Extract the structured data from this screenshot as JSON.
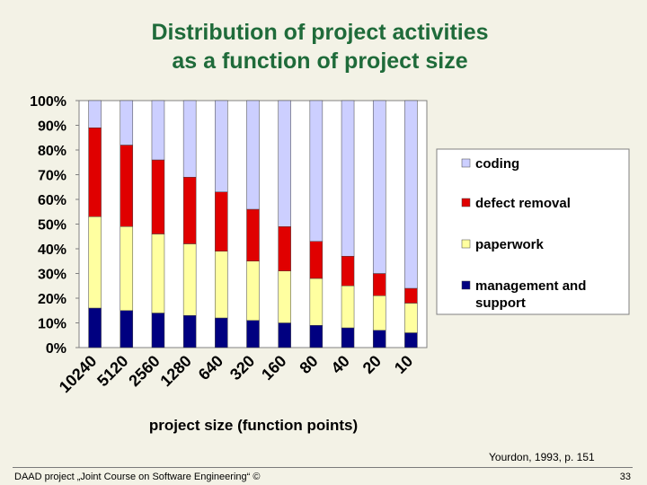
{
  "slide": {
    "title_line1": "Distribution of project activities",
    "title_line2": "as a function of project size",
    "citation": "Yourdon, 1993, p. 151",
    "footer": "DAAD project „Joint Course on Software Engineering“ ©",
    "page_number": "33"
  },
  "chart_data": {
    "type": "bar",
    "stacked": true,
    "xlabel": "project size (function points)",
    "ylabel": "",
    "ylim": [
      0,
      100
    ],
    "yticks": [
      "0%",
      "10%",
      "20%",
      "30%",
      "40%",
      "50%",
      "60%",
      "70%",
      "80%",
      "90%",
      "100%"
    ],
    "categories": [
      "10240",
      "5120",
      "2560",
      "1280",
      "640",
      "320",
      "160",
      "80",
      "40",
      "20",
      "10"
    ],
    "legend_position": "right",
    "grid": false,
    "series": [
      {
        "name": "management and support",
        "color": "#000080",
        "values": [
          16,
          15,
          14,
          13,
          12,
          11,
          10,
          9,
          8,
          7,
          6
        ]
      },
      {
        "name": "paperwork",
        "color": "#ffffa0",
        "values": [
          37,
          34,
          32,
          29,
          27,
          24,
          21,
          19,
          17,
          14,
          12
        ]
      },
      {
        "name": "defect removal",
        "color": "#e00000",
        "values": [
          36,
          33,
          30,
          27,
          24,
          21,
          18,
          15,
          12,
          9,
          6
        ]
      },
      {
        "name": "coding",
        "color": "#cccfff",
        "values": [
          11,
          18,
          24,
          31,
          37,
          44,
          51,
          57,
          63,
          70,
          76
        ]
      }
    ],
    "legend_order": [
      "coding",
      "defect removal",
      "paperwork",
      "management and support"
    ]
  }
}
